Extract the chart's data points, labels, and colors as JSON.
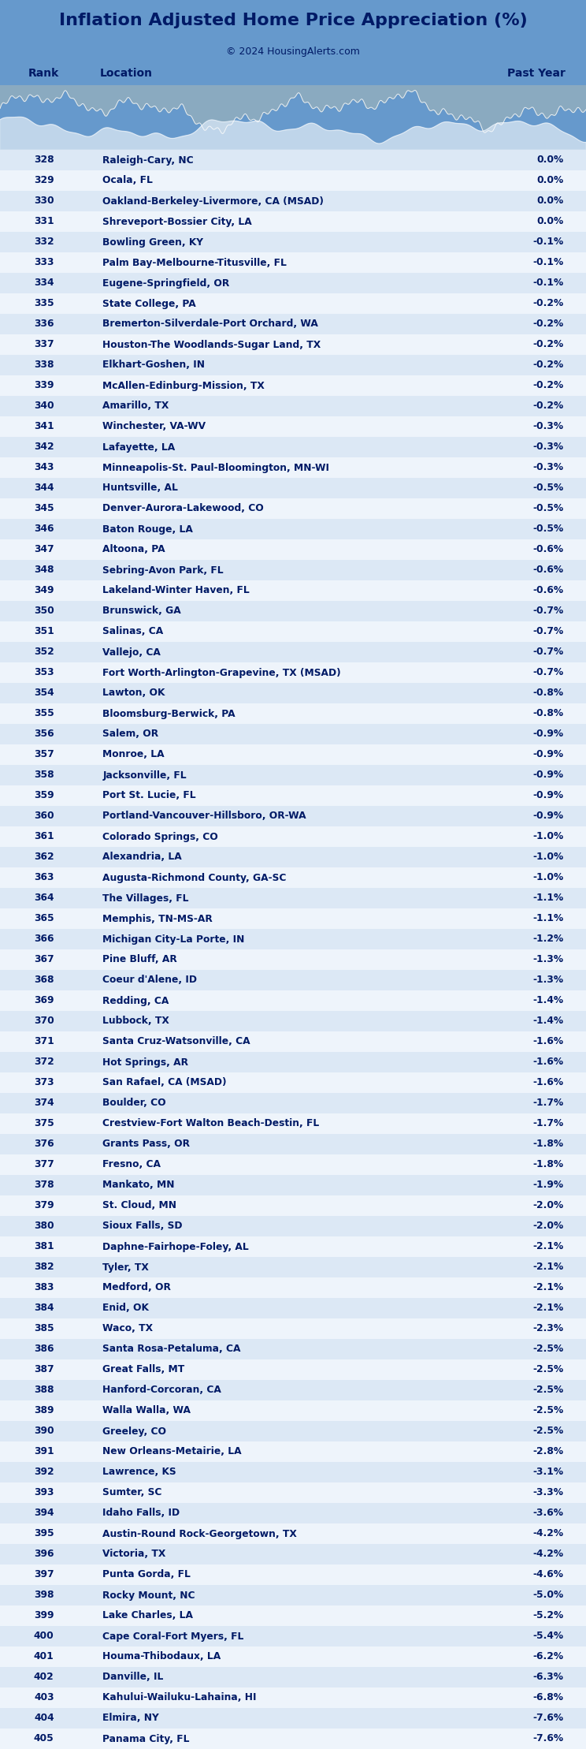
{
  "title": "Inflation Adjusted Home Price Appreciation (%)",
  "subtitle": "© 2024 HousingAlerts.com",
  "col_headers": [
    "Rank",
    "Location",
    "Past Year"
  ],
  "title_bg": "#6699cc",
  "header_bg": "#c8d8ec",
  "row_bg_odd": "#dce8f5",
  "row_bg_even": "#eef4fb",
  "text_color": "#001a66",
  "rows": [
    [
      328,
      "Raleigh-Cary, NC",
      "0.0%"
    ],
    [
      329,
      "Ocala, FL",
      "0.0%"
    ],
    [
      330,
      "Oakland-Berkeley-Livermore, CA (MSAD)",
      "0.0%"
    ],
    [
      331,
      "Shreveport-Bossier City, LA",
      "0.0%"
    ],
    [
      332,
      "Bowling Green, KY",
      "-0.1%"
    ],
    [
      333,
      "Palm Bay-Melbourne-Titusville, FL",
      "-0.1%"
    ],
    [
      334,
      "Eugene-Springfield, OR",
      "-0.1%"
    ],
    [
      335,
      "State College, PA",
      "-0.2%"
    ],
    [
      336,
      "Bremerton-Silverdale-Port Orchard, WA",
      "-0.2%"
    ],
    [
      337,
      "Houston-The Woodlands-Sugar Land, TX",
      "-0.2%"
    ],
    [
      338,
      "Elkhart-Goshen, IN",
      "-0.2%"
    ],
    [
      339,
      "McAllen-Edinburg-Mission, TX",
      "-0.2%"
    ],
    [
      340,
      "Amarillo, TX",
      "-0.2%"
    ],
    [
      341,
      "Winchester, VA-WV",
      "-0.3%"
    ],
    [
      342,
      "Lafayette, LA",
      "-0.3%"
    ],
    [
      343,
      "Minneapolis-St. Paul-Bloomington, MN-WI",
      "-0.3%"
    ],
    [
      344,
      "Huntsville, AL",
      "-0.5%"
    ],
    [
      345,
      "Denver-Aurora-Lakewood, CO",
      "-0.5%"
    ],
    [
      346,
      "Baton Rouge, LA",
      "-0.5%"
    ],
    [
      347,
      "Altoona, PA",
      "-0.6%"
    ],
    [
      348,
      "Sebring-Avon Park, FL",
      "-0.6%"
    ],
    [
      349,
      "Lakeland-Winter Haven, FL",
      "-0.6%"
    ],
    [
      350,
      "Brunswick, GA",
      "-0.7%"
    ],
    [
      351,
      "Salinas, CA",
      "-0.7%"
    ],
    [
      352,
      "Vallejo, CA",
      "-0.7%"
    ],
    [
      353,
      "Fort Worth-Arlington-Grapevine, TX (MSAD)",
      "-0.7%"
    ],
    [
      354,
      "Lawton, OK",
      "-0.8%"
    ],
    [
      355,
      "Bloomsburg-Berwick, PA",
      "-0.8%"
    ],
    [
      356,
      "Salem, OR",
      "-0.9%"
    ],
    [
      357,
      "Monroe, LA",
      "-0.9%"
    ],
    [
      358,
      "Jacksonville, FL",
      "-0.9%"
    ],
    [
      359,
      "Port St. Lucie, FL",
      "-0.9%"
    ],
    [
      360,
      "Portland-Vancouver-Hillsboro, OR-WA",
      "-0.9%"
    ],
    [
      361,
      "Colorado Springs, CO",
      "-1.0%"
    ],
    [
      362,
      "Alexandria, LA",
      "-1.0%"
    ],
    [
      363,
      "Augusta-Richmond County, GA-SC",
      "-1.0%"
    ],
    [
      364,
      "The Villages, FL",
      "-1.1%"
    ],
    [
      365,
      "Memphis, TN-MS-AR",
      "-1.1%"
    ],
    [
      366,
      "Michigan City-La Porte, IN",
      "-1.2%"
    ],
    [
      367,
      "Pine Bluff, AR",
      "-1.3%"
    ],
    [
      368,
      "Coeur d'Alene, ID",
      "-1.3%"
    ],
    [
      369,
      "Redding, CA",
      "-1.4%"
    ],
    [
      370,
      "Lubbock, TX",
      "-1.4%"
    ],
    [
      371,
      "Santa Cruz-Watsonville, CA",
      "-1.6%"
    ],
    [
      372,
      "Hot Springs, AR",
      "-1.6%"
    ],
    [
      373,
      "San Rafael, CA (MSAD)",
      "-1.6%"
    ],
    [
      374,
      "Boulder, CO",
      "-1.7%"
    ],
    [
      375,
      "Crestview-Fort Walton Beach-Destin, FL",
      "-1.7%"
    ],
    [
      376,
      "Grants Pass, OR",
      "-1.8%"
    ],
    [
      377,
      "Fresno, CA",
      "-1.8%"
    ],
    [
      378,
      "Mankato, MN",
      "-1.9%"
    ],
    [
      379,
      "St. Cloud, MN",
      "-2.0%"
    ],
    [
      380,
      "Sioux Falls, SD",
      "-2.0%"
    ],
    [
      381,
      "Daphne-Fairhope-Foley, AL",
      "-2.1%"
    ],
    [
      382,
      "Tyler, TX",
      "-2.1%"
    ],
    [
      383,
      "Medford, OR",
      "-2.1%"
    ],
    [
      384,
      "Enid, OK",
      "-2.1%"
    ],
    [
      385,
      "Waco, TX",
      "-2.3%"
    ],
    [
      386,
      "Santa Rosa-Petaluma, CA",
      "-2.5%"
    ],
    [
      387,
      "Great Falls, MT",
      "-2.5%"
    ],
    [
      388,
      "Hanford-Corcoran, CA",
      "-2.5%"
    ],
    [
      389,
      "Walla Walla, WA",
      "-2.5%"
    ],
    [
      390,
      "Greeley, CO",
      "-2.5%"
    ],
    [
      391,
      "New Orleans-Metairie, LA",
      "-2.8%"
    ],
    [
      392,
      "Lawrence, KS",
      "-3.1%"
    ],
    [
      393,
      "Sumter, SC",
      "-3.3%"
    ],
    [
      394,
      "Idaho Falls, ID",
      "-3.6%"
    ],
    [
      395,
      "Austin-Round Rock-Georgetown, TX",
      "-4.2%"
    ],
    [
      396,
      "Victoria, TX",
      "-4.2%"
    ],
    [
      397,
      "Punta Gorda, FL",
      "-4.6%"
    ],
    [
      398,
      "Rocky Mount, NC",
      "-5.0%"
    ],
    [
      399,
      "Lake Charles, LA",
      "-5.2%"
    ],
    [
      400,
      "Cape Coral-Fort Myers, FL",
      "-5.4%"
    ],
    [
      401,
      "Houma-Thibodaux, LA",
      "-6.2%"
    ],
    [
      402,
      "Danville, IL",
      "-6.3%"
    ],
    [
      403,
      "Kahului-Wailuku-Lahaina, HI",
      "-6.8%"
    ],
    [
      404,
      "Elmira, NY",
      "-7.6%"
    ],
    [
      405,
      "Panama City, FL",
      "-7.6%"
    ]
  ]
}
